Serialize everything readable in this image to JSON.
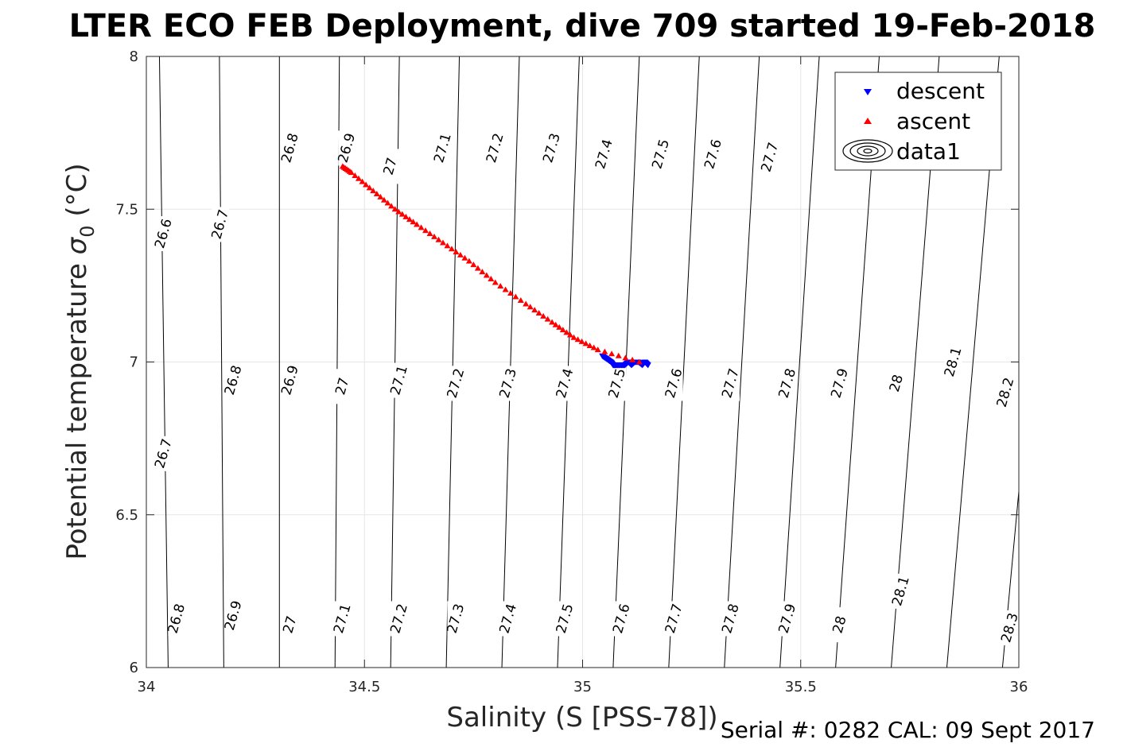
{
  "chart_data": {
    "type": "scatter",
    "title": "LTER ECO FEB Deployment, dive 709 started 19-Feb-2018",
    "xlabel": "Salinity (S [PSS-78])",
    "ylabel_main": "Potential temperature ",
    "ylabel_symbol": "σ",
    "ylabel_sub": "0",
    "ylabel_unit": " (°C)",
    "xlim": [
      34,
      36
    ],
    "ylim": [
      6,
      8
    ],
    "x_ticks": [
      "34",
      "34.5",
      "35",
      "35.5",
      "36"
    ],
    "y_ticks": [
      "6",
      "6.5",
      "7",
      "7.5",
      "8"
    ],
    "grid": true,
    "legend_placement": "top-right",
    "legend": [
      {
        "label": "descent",
        "marker": "triangle-down",
        "color": "#0000ff"
      },
      {
        "label": "ascent",
        "marker": "triangle-up",
        "color": "#ff0000"
      },
      {
        "label": "data1",
        "marker": "contour",
        "color": "#000000"
      }
    ],
    "series": [
      {
        "name": "descent",
        "color": "#0000ff",
        "marker": "triangle-down",
        "points": [
          [
            35.045,
            7.02
          ],
          [
            35.055,
            7.01
          ],
          [
            35.065,
            7.0
          ],
          [
            35.07,
            6.99
          ],
          [
            35.075,
            6.99
          ],
          [
            35.082,
            6.99
          ],
          [
            35.09,
            6.99
          ],
          [
            35.097,
            6.99
          ],
          [
            35.105,
            7.0
          ],
          [
            35.112,
            6.99
          ],
          [
            35.12,
            7.0
          ],
          [
            35.128,
            7.0
          ],
          [
            35.137,
            6.99
          ],
          [
            35.143,
            7.0
          ],
          [
            35.15,
            6.99
          ]
        ]
      },
      {
        "name": "ascent",
        "color": "#ff0000",
        "marker": "triangle-up",
        "points": [
          [
            35.13,
            7.0
          ],
          [
            35.035,
            7.04
          ],
          [
            34.98,
            7.08
          ],
          [
            34.93,
            7.13
          ],
          [
            34.87,
            7.19
          ],
          [
            34.8,
            7.26
          ],
          [
            34.74,
            7.33
          ],
          [
            34.68,
            7.39
          ],
          [
            34.62,
            7.45
          ],
          [
            34.57,
            7.5
          ],
          [
            34.52,
            7.56
          ],
          [
            34.47,
            7.62
          ],
          [
            34.45,
            7.64
          ]
        ]
      }
    ],
    "contour_levels": [
      "26.6",
      "26.7",
      "26.8",
      "26.9",
      "27",
      "27.1",
      "27.2",
      "27.3",
      "27.4",
      "27.5",
      "27.6",
      "27.7",
      "27.8",
      "27.9",
      "28",
      "28.1",
      "28.2",
      "28.3"
    ],
    "contour_labels": [
      {
        "text": "26.6",
        "x": 34.04,
        "y": 7.42
      },
      {
        "text": "26.7",
        "x": 34.17,
        "y": 7.45
      },
      {
        "text": "26.8",
        "x": 34.33,
        "y": 7.7
      },
      {
        "text": "26.9",
        "x": 34.46,
        "y": 7.7
      },
      {
        "text": "27",
        "x": 34.56,
        "y": 7.64
      },
      {
        "text": "27.1",
        "x": 34.68,
        "y": 7.7
      },
      {
        "text": "27.2",
        "x": 34.8,
        "y": 7.7
      },
      {
        "text": "27.3",
        "x": 34.93,
        "y": 7.7
      },
      {
        "text": "27.4",
        "x": 35.05,
        "y": 7.68
      },
      {
        "text": "27.5",
        "x": 35.18,
        "y": 7.68
      },
      {
        "text": "27.6",
        "x": 35.3,
        "y": 7.68
      },
      {
        "text": "27.7",
        "x": 35.43,
        "y": 7.67
      },
      {
        "text": "26.8",
        "x": 34.2,
        "y": 6.94
      },
      {
        "text": "26.9",
        "x": 34.33,
        "y": 6.94
      },
      {
        "text": "27",
        "x": 34.45,
        "y": 6.92
      },
      {
        "text": "27.1",
        "x": 34.58,
        "y": 6.94
      },
      {
        "text": "27.2",
        "x": 34.71,
        "y": 6.93
      },
      {
        "text": "27.3",
        "x": 34.83,
        "y": 6.93
      },
      {
        "text": "27.4",
        "x": 34.96,
        "y": 6.93
      },
      {
        "text": "27.5",
        "x": 35.08,
        "y": 6.93
      },
      {
        "text": "27.6",
        "x": 35.21,
        "y": 6.93
      },
      {
        "text": "27.7",
        "x": 35.34,
        "y": 6.93
      },
      {
        "text": "27.8",
        "x": 35.47,
        "y": 6.93
      },
      {
        "text": "27.9",
        "x": 35.59,
        "y": 6.93
      },
      {
        "text": "28",
        "x": 35.72,
        "y": 6.93
      },
      {
        "text": "28.1",
        "x": 35.85,
        "y": 7.0
      },
      {
        "text": "28.2",
        "x": 35.97,
        "y": 6.9
      },
      {
        "text": "26.7",
        "x": 34.04,
        "y": 6.7
      },
      {
        "text": "26.8",
        "x": 34.07,
        "y": 6.16
      },
      {
        "text": "26.9",
        "x": 34.2,
        "y": 6.17
      },
      {
        "text": "27",
        "x": 34.33,
        "y": 6.14
      },
      {
        "text": "27.1",
        "x": 34.45,
        "y": 6.16
      },
      {
        "text": "27.2",
        "x": 34.58,
        "y": 6.16
      },
      {
        "text": "27.3",
        "x": 34.71,
        "y": 6.16
      },
      {
        "text": "27.4",
        "x": 34.83,
        "y": 6.16
      },
      {
        "text": "27.5",
        "x": 34.96,
        "y": 6.16
      },
      {
        "text": "27.6",
        "x": 35.09,
        "y": 6.16
      },
      {
        "text": "27.7",
        "x": 35.21,
        "y": 6.16
      },
      {
        "text": "27.8",
        "x": 35.34,
        "y": 6.16
      },
      {
        "text": "27.9",
        "x": 35.47,
        "y": 6.16
      },
      {
        "text": "28",
        "x": 35.59,
        "y": 6.14
      },
      {
        "text": "28.1",
        "x": 35.73,
        "y": 6.25
      },
      {
        "text": "28.3",
        "x": 35.98,
        "y": 6.13
      }
    ]
  },
  "footer": {
    "serial_text": "Serial #: 0282  CAL: 09 Sept 2017"
  }
}
